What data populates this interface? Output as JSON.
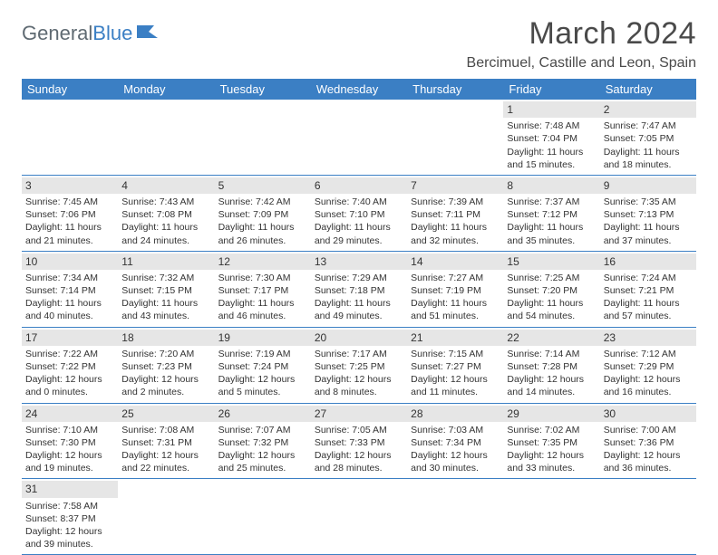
{
  "logo": {
    "text1": "General",
    "text2": "Blue"
  },
  "title": "March 2024",
  "location": "Bercimuel, Castille and Leon, Spain",
  "colors": {
    "header_bg": "#3b7fc4",
    "header_text": "#ffffff",
    "daynum_bg": "#e6e6e6",
    "cell_text": "#333333",
    "page_bg": "#ffffff",
    "logo_gray": "#5f6a72",
    "logo_blue": "#3b7fc4",
    "border": "#3b7fc4"
  },
  "fonts": {
    "title_pt": 34,
    "location_pt": 16,
    "header_pt": 13,
    "cell_pt": 10.5,
    "daynum_pt": 12
  },
  "day_names": [
    "Sunday",
    "Monday",
    "Tuesday",
    "Wednesday",
    "Thursday",
    "Friday",
    "Saturday"
  ],
  "weeks": [
    [
      null,
      null,
      null,
      null,
      null,
      {
        "n": "1",
        "sunrise": "7:48 AM",
        "sunset": "7:04 PM",
        "day_h": "11",
        "day_m": "15"
      },
      {
        "n": "2",
        "sunrise": "7:47 AM",
        "sunset": "7:05 PM",
        "day_h": "11",
        "day_m": "18"
      }
    ],
    [
      {
        "n": "3",
        "sunrise": "7:45 AM",
        "sunset": "7:06 PM",
        "day_h": "11",
        "day_m": "21"
      },
      {
        "n": "4",
        "sunrise": "7:43 AM",
        "sunset": "7:08 PM",
        "day_h": "11",
        "day_m": "24"
      },
      {
        "n": "5",
        "sunrise": "7:42 AM",
        "sunset": "7:09 PM",
        "day_h": "11",
        "day_m": "26"
      },
      {
        "n": "6",
        "sunrise": "7:40 AM",
        "sunset": "7:10 PM",
        "day_h": "11",
        "day_m": "29"
      },
      {
        "n": "7",
        "sunrise": "7:39 AM",
        "sunset": "7:11 PM",
        "day_h": "11",
        "day_m": "32"
      },
      {
        "n": "8",
        "sunrise": "7:37 AM",
        "sunset": "7:12 PM",
        "day_h": "11",
        "day_m": "35"
      },
      {
        "n": "9",
        "sunrise": "7:35 AM",
        "sunset": "7:13 PM",
        "day_h": "11",
        "day_m": "37"
      }
    ],
    [
      {
        "n": "10",
        "sunrise": "7:34 AM",
        "sunset": "7:14 PM",
        "day_h": "11",
        "day_m": "40"
      },
      {
        "n": "11",
        "sunrise": "7:32 AM",
        "sunset": "7:15 PM",
        "day_h": "11",
        "day_m": "43"
      },
      {
        "n": "12",
        "sunrise": "7:30 AM",
        "sunset": "7:17 PM",
        "day_h": "11",
        "day_m": "46"
      },
      {
        "n": "13",
        "sunrise": "7:29 AM",
        "sunset": "7:18 PM",
        "day_h": "11",
        "day_m": "49"
      },
      {
        "n": "14",
        "sunrise": "7:27 AM",
        "sunset": "7:19 PM",
        "day_h": "11",
        "day_m": "51"
      },
      {
        "n": "15",
        "sunrise": "7:25 AM",
        "sunset": "7:20 PM",
        "day_h": "11",
        "day_m": "54"
      },
      {
        "n": "16",
        "sunrise": "7:24 AM",
        "sunset": "7:21 PM",
        "day_h": "11",
        "day_m": "57"
      }
    ],
    [
      {
        "n": "17",
        "sunrise": "7:22 AM",
        "sunset": "7:22 PM",
        "day_h": "12",
        "day_m": "0"
      },
      {
        "n": "18",
        "sunrise": "7:20 AM",
        "sunset": "7:23 PM",
        "day_h": "12",
        "day_m": "2"
      },
      {
        "n": "19",
        "sunrise": "7:19 AM",
        "sunset": "7:24 PM",
        "day_h": "12",
        "day_m": "5"
      },
      {
        "n": "20",
        "sunrise": "7:17 AM",
        "sunset": "7:25 PM",
        "day_h": "12",
        "day_m": "8"
      },
      {
        "n": "21",
        "sunrise": "7:15 AM",
        "sunset": "7:27 PM",
        "day_h": "12",
        "day_m": "11"
      },
      {
        "n": "22",
        "sunrise": "7:14 AM",
        "sunset": "7:28 PM",
        "day_h": "12",
        "day_m": "14"
      },
      {
        "n": "23",
        "sunrise": "7:12 AM",
        "sunset": "7:29 PM",
        "day_h": "12",
        "day_m": "16"
      }
    ],
    [
      {
        "n": "24",
        "sunrise": "7:10 AM",
        "sunset": "7:30 PM",
        "day_h": "12",
        "day_m": "19"
      },
      {
        "n": "25",
        "sunrise": "7:08 AM",
        "sunset": "7:31 PM",
        "day_h": "12",
        "day_m": "22"
      },
      {
        "n": "26",
        "sunrise": "7:07 AM",
        "sunset": "7:32 PM",
        "day_h": "12",
        "day_m": "25"
      },
      {
        "n": "27",
        "sunrise": "7:05 AM",
        "sunset": "7:33 PM",
        "day_h": "12",
        "day_m": "28"
      },
      {
        "n": "28",
        "sunrise": "7:03 AM",
        "sunset": "7:34 PM",
        "day_h": "12",
        "day_m": "30"
      },
      {
        "n": "29",
        "sunrise": "7:02 AM",
        "sunset": "7:35 PM",
        "day_h": "12",
        "day_m": "33"
      },
      {
        "n": "30",
        "sunrise": "7:00 AM",
        "sunset": "7:36 PM",
        "day_h": "12",
        "day_m": "36"
      }
    ],
    [
      {
        "n": "31",
        "sunrise": "7:58 AM",
        "sunset": "8:37 PM",
        "day_h": "12",
        "day_m": "39"
      },
      null,
      null,
      null,
      null,
      null,
      null
    ]
  ]
}
